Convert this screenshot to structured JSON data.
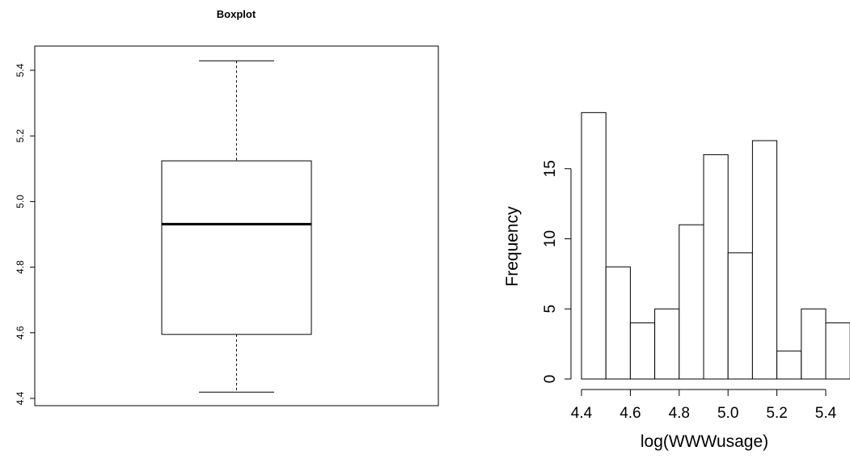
{
  "chart_data": [
    {
      "type": "boxplot",
      "title": "Boxplot",
      "xlabel": "",
      "ylabel": "",
      "ylim": [
        4.4,
        5.44
      ],
      "y_ticks": [
        4.4,
        4.6,
        4.8,
        5.0,
        5.2,
        5.4
      ],
      "y_tick_labels": [
        "4.4",
        "4.6",
        "4.8",
        "5.0",
        "5.2",
        "5.4"
      ],
      "stats": {
        "lower_whisker": 4.419,
        "q1": 4.595,
        "median": 4.931,
        "q3": 5.124,
        "upper_whisker": 5.429
      }
    },
    {
      "type": "histogram",
      "title": "",
      "xlabel": "log(WWWusage)",
      "ylabel": "Frequency",
      "bins": [
        4.4,
        4.5,
        4.6,
        4.7,
        4.8,
        4.9,
        5.0,
        5.1,
        5.2,
        5.3,
        5.4,
        5.5
      ],
      "values": [
        19,
        8,
        4,
        5,
        11,
        16,
        9,
        17,
        2,
        5,
        4
      ],
      "x_ticks": [
        4.4,
        4.6,
        4.8,
        5.0,
        5.2,
        5.4
      ],
      "x_tick_labels": [
        "4.4",
        "4.6",
        "4.8",
        "5.0",
        "5.2",
        "5.4"
      ],
      "y_ticks": [
        0,
        5,
        10,
        15
      ],
      "y_tick_labels": [
        "0",
        "5",
        "10",
        "15"
      ],
      "xlim": [
        4.4,
        5.5
      ],
      "ylim": [
        0,
        19
      ]
    }
  ]
}
